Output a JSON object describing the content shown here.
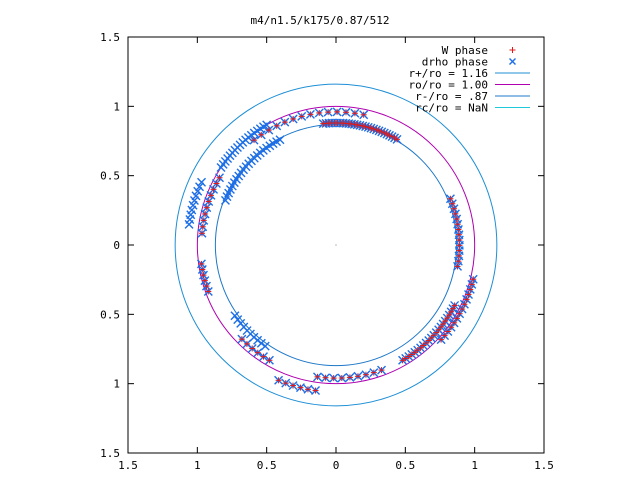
{
  "chart_data": {
    "type": "scatter",
    "title": "m4/n1.5/k175/0.87/512",
    "xlabel": "",
    "ylabel": "",
    "xlim": [
      -1.5,
      1.5
    ],
    "ylim": [
      -1.5,
      1.5
    ],
    "x_ticks": [
      -1.5,
      -1,
      -0.5,
      0,
      0.5,
      1,
      1.5
    ],
    "y_ticks": [
      -1.5,
      -1,
      -0.5,
      0,
      0.5,
      1,
      1.5
    ],
    "x_tick_labels": [
      "1.5",
      "1",
      "0.5",
      "0",
      "0.5",
      "1",
      "1.5"
    ],
    "y_tick_labels": [
      "1.5",
      "1",
      "0.5",
      "0",
      "0.5",
      "1",
      "1.5"
    ],
    "grid": false,
    "legend_position": "top-right",
    "series": [
      {
        "name": "W phase",
        "kind": "points",
        "marker": "+",
        "color": "#e01818",
        "arcs": [
          {
            "r": 0.88,
            "start_deg": 60,
            "end_deg": 96,
            "n": 28
          },
          {
            "r": 0.96,
            "start_deg": 78,
            "end_deg": 128,
            "n": 14
          },
          {
            "r": 0.97,
            "start_deg": 150,
            "end_deg": 175,
            "n": 10
          },
          {
            "r": 0.98,
            "start_deg": 188,
            "end_deg": 200,
            "n": 6
          },
          {
            "r": 0.96,
            "start_deg": 225,
            "end_deg": 240,
            "n": 6
          },
          {
            "r": 1.06,
            "start_deg": 247,
            "end_deg": 262,
            "n": 6
          },
          {
            "r": 0.96,
            "start_deg": 262,
            "end_deg": 290,
            "n": 9
          },
          {
            "r": 0.96,
            "start_deg": 300,
            "end_deg": 333,
            "n": 22
          },
          {
            "r": 1.02,
            "start_deg": 318,
            "end_deg": 346,
            "n": 14
          },
          {
            "r": 0.89,
            "start_deg": 350,
            "end_deg": 22,
            "n": 14
          }
        ]
      },
      {
        "name": "drho phase",
        "kind": "points",
        "marker": "x",
        "color": "#1e6ee6",
        "arcs": [
          {
            "r": 0.88,
            "start_deg": 60,
            "end_deg": 96,
            "n": 28
          },
          {
            "r": 0.96,
            "start_deg": 78,
            "end_deg": 128,
            "n": 14
          },
          {
            "r": 1.0,
            "start_deg": 120,
            "end_deg": 146,
            "n": 18
          },
          {
            "r": 0.86,
            "start_deg": 118,
            "end_deg": 158,
            "n": 22
          },
          {
            "r": 0.97,
            "start_deg": 150,
            "end_deg": 175,
            "n": 10
          },
          {
            "r": 1.07,
            "start_deg": 155,
            "end_deg": 172,
            "n": 10
          },
          {
            "r": 0.98,
            "start_deg": 188,
            "end_deg": 200,
            "n": 6
          },
          {
            "r": 0.89,
            "start_deg": 215,
            "end_deg": 235,
            "n": 10
          },
          {
            "r": 0.96,
            "start_deg": 225,
            "end_deg": 240,
            "n": 6
          },
          {
            "r": 1.06,
            "start_deg": 247,
            "end_deg": 262,
            "n": 6
          },
          {
            "r": 0.96,
            "start_deg": 262,
            "end_deg": 290,
            "n": 9
          },
          {
            "r": 0.96,
            "start_deg": 300,
            "end_deg": 333,
            "n": 22
          },
          {
            "r": 1.02,
            "start_deg": 318,
            "end_deg": 346,
            "n": 14
          },
          {
            "r": 0.89,
            "start_deg": 350,
            "end_deg": 22,
            "n": 14
          }
        ]
      },
      {
        "name": "r+/ro = 1.16",
        "kind": "circle",
        "r": 1.16,
        "color": "#1e8fd6"
      },
      {
        "name": "ro/ro = 1.00",
        "kind": "circle",
        "r": 1.0,
        "color": "#b000b0"
      },
      {
        "name": "r-/ro = .87",
        "kind": "circle",
        "r": 0.87,
        "color": "#1e78c8"
      },
      {
        "name": "rc/ro = NaN",
        "kind": "circle",
        "r": null,
        "color": "#20c8d8"
      }
    ]
  }
}
